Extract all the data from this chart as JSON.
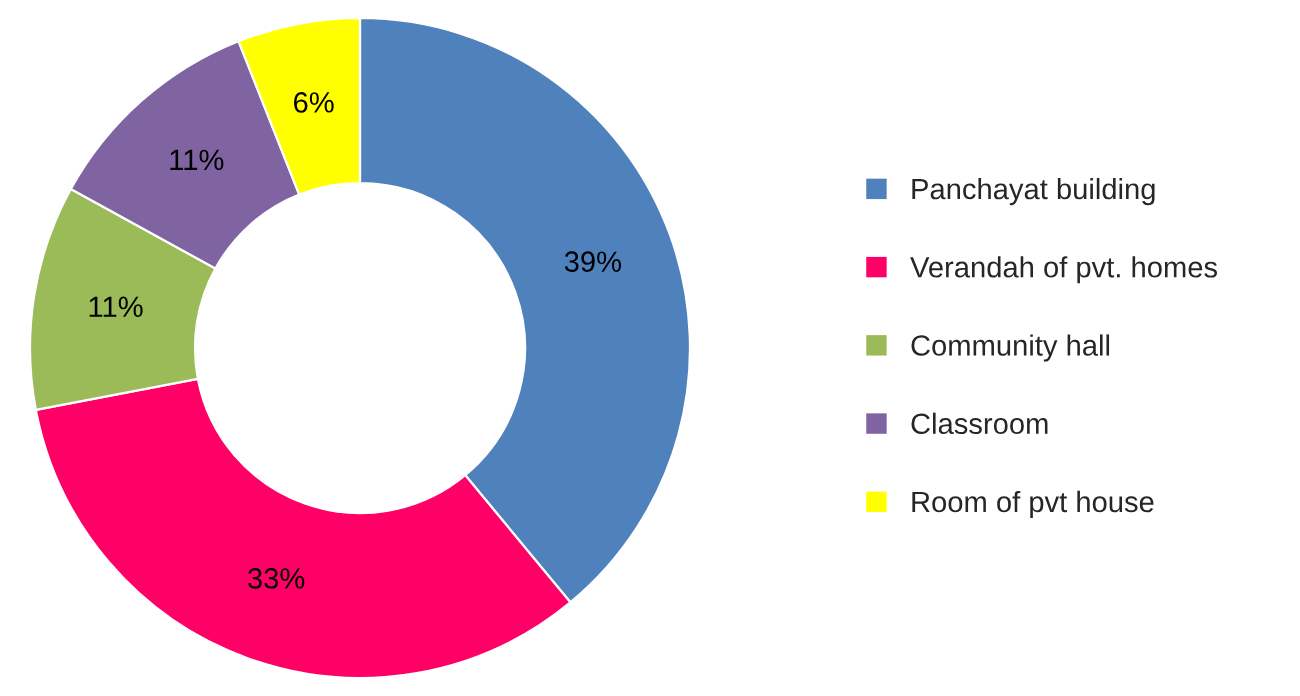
{
  "chart_data": {
    "type": "donut",
    "categories": [
      "Panchayat building",
      "Verandah of pvt. homes",
      "Community hall",
      "Classroom",
      "Room of pvt house"
    ],
    "values": [
      39,
      33,
      11,
      11,
      6
    ],
    "colors": [
      "#4f81bd",
      "#ff0066",
      "#9bbb59",
      "#8064a2",
      "#ffff00"
    ],
    "value_labels": [
      "39%",
      "33%",
      "11%",
      "11%",
      "6%"
    ],
    "legend": "right"
  }
}
